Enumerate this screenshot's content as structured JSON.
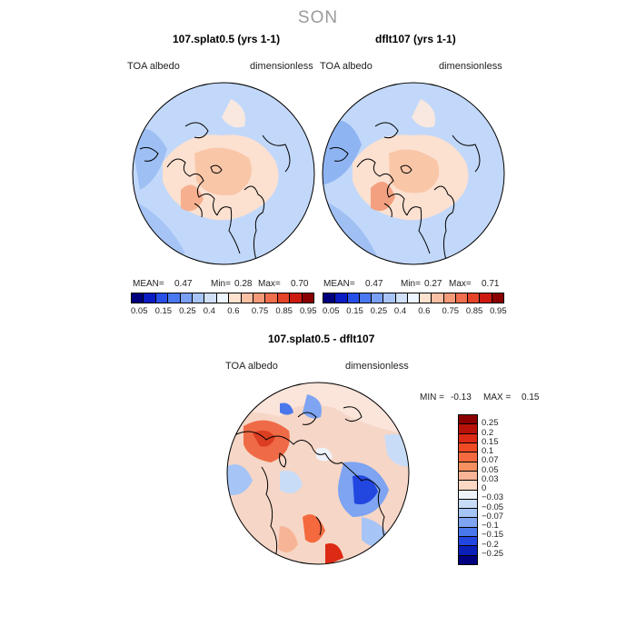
{
  "figure": {
    "season": "SON",
    "panels": [
      {
        "title": "107.splat0.5 (yrs 1-1)",
        "variable": "TOA albedo",
        "units": "dimensionless",
        "mean_label": "MEAN=",
        "mean": "0.47",
        "min_label": "Min=",
        "min": "0.28",
        "max_label": "Max=",
        "max": "0.70"
      },
      {
        "title": "dflt107 (yrs 1-1)",
        "variable": "TOA albedo",
        "units": "dimensionless",
        "mean_label": "MEAN=",
        "mean": "0.47",
        "min_label": "Min=",
        "min": "0.27",
        "max_label": "Max=",
        "max": "0.71"
      }
    ],
    "abs_colorbar": {
      "ticks": [
        "0.05",
        "0.15",
        "0.25",
        "0.4",
        "0.6",
        "0.75",
        "0.85",
        "0.95"
      ],
      "colors": [
        "#00007f",
        "#0a1cc4",
        "#2850e8",
        "#4a78f0",
        "#7aa0f4",
        "#a8c4f6",
        "#d0e0f8",
        "#eef6ff",
        "#fde2d0",
        "#f9c0a4",
        "#f49a78",
        "#ee6e4e",
        "#e4442a",
        "#cc1a10",
        "#8a0000"
      ]
    },
    "diff_panel": {
      "title": "107.splat0.5 - dflt107",
      "variable": "TOA albedo",
      "units": "dimensionless",
      "min_label": "MIN =",
      "min": "-0.13",
      "max_label": "MAX =",
      "max": "0.15"
    },
    "diff_colorbar": {
      "ticks": [
        "0.25",
        "0.2",
        "0.15",
        "0.1",
        "0.07",
        "0.05",
        "0.03",
        "0",
        "-0.03",
        "-0.05",
        "-0.07",
        "-0.1",
        "-0.15",
        "-0.2",
        "-0.25"
      ],
      "colors": [
        "#8b0000",
        "#b81208",
        "#dc2a14",
        "#f04a24",
        "#f46a3e",
        "#f6905e",
        "#f8b496",
        "#fcd8c4",
        "#eef2fa",
        "#c8dcf8",
        "#a6c4f6",
        "#7ea4f2",
        "#4a78ec",
        "#2246e0",
        "#0a20b8",
        "#000080"
      ]
    }
  }
}
